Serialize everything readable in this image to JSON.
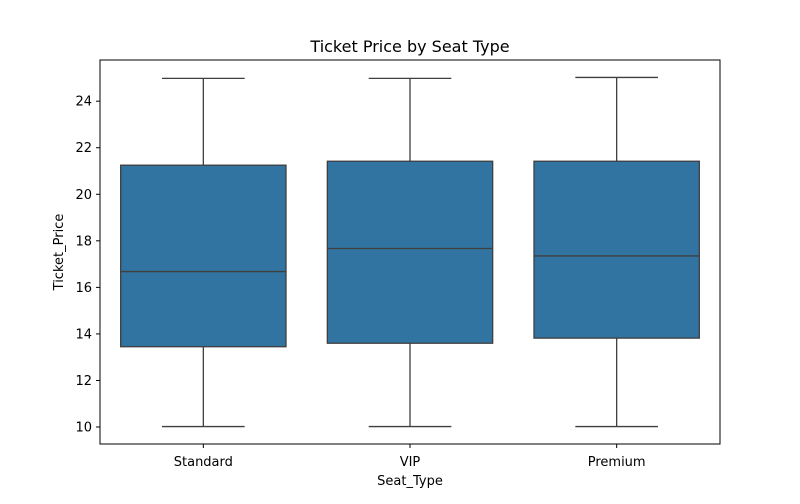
{
  "chart_data": {
    "type": "box",
    "title": "Ticket Price by Seat Type",
    "xlabel": "Seat_Type",
    "ylabel": "Ticket_Price",
    "categories": [
      "Standard",
      "VIP",
      "Premium"
    ],
    "boxes": [
      {
        "category": "Standard",
        "whisker_low": 10.02,
        "q1": 13.45,
        "median": 16.68,
        "q3": 21.25,
        "whisker_high": 24.98
      },
      {
        "category": "VIP",
        "whisker_low": 10.02,
        "q1": 13.6,
        "median": 17.67,
        "q3": 21.42,
        "whisker_high": 24.98
      },
      {
        "category": "Premium",
        "whisker_low": 10.02,
        "q1": 13.82,
        "median": 17.35,
        "q3": 21.42,
        "whisker_high": 25.02
      }
    ],
    "y_ticks": [
      10,
      12,
      14,
      16,
      18,
      20,
      22,
      24
    ],
    "ylim": [
      9.27,
      25.77
    ],
    "grid": false,
    "box_color": "#3274a1",
    "line_color": "#3f3f3f"
  }
}
